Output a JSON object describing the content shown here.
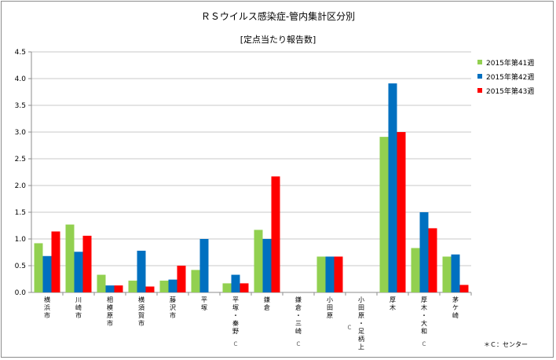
{
  "title": "ＲＳウイルス感染症-管内集計区分別",
  "subtitle": "[定点当たり報告数]",
  "note": "＊Ｃ：センター",
  "colors": {
    "s1": "#92d050",
    "s2": "#0070c0",
    "s3": "#ff0000",
    "grid": "#c8c8c8",
    "axis": "#8c8c8c"
  },
  "chart_data": {
    "type": "bar",
    "title": "ＲＳウイルス感染症-管内集計区分別",
    "subtitle": "[定点当たり報告数]",
    "categories": [
      "横浜市",
      "川崎市",
      "相模原市",
      "横須賀市",
      "藤沢市",
      "平塚",
      "平塚・秦野Ｃ",
      "鎌倉",
      "鎌倉・三崎Ｃ",
      "小田原",
      "小田原・足柄上Ｃ",
      "厚木",
      "厚木・大和Ｃ",
      "茅ケ崎"
    ],
    "category_labels": [
      {
        "lines": [
          "横",
          "浜",
          "市"
        ],
        "c": ""
      },
      {
        "lines": [
          "川",
          "崎",
          "市"
        ],
        "c": ""
      },
      {
        "lines": [
          "相",
          "模",
          "原",
          "市"
        ],
        "c": ""
      },
      {
        "lines": [
          "横",
          "須",
          "賀",
          "市"
        ],
        "c": ""
      },
      {
        "lines": [
          "藤",
          "沢",
          "市"
        ],
        "c": ""
      },
      {
        "lines": [
          "平",
          "塚"
        ],
        "c": ""
      },
      {
        "lines": [
          "平",
          "塚",
          "・",
          "秦",
          "野"
        ],
        "c": "Ｃ"
      },
      {
        "lines": [
          "鎌",
          "倉"
        ],
        "c": ""
      },
      {
        "lines": [
          "鎌",
          "倉",
          "・",
          "三",
          "崎"
        ],
        "c": "Ｃ"
      },
      {
        "lines": [
          "小",
          "田",
          "原"
        ],
        "c": ""
      },
      {
        "lines": [
          "小",
          "田",
          "原",
          "・",
          "足",
          "柄",
          "上"
        ],
        "c": "Ｃ"
      },
      {
        "lines": [
          "厚",
          "木"
        ],
        "c": ""
      },
      {
        "lines": [
          "厚",
          "木",
          "・",
          "大",
          "和"
        ],
        "c": "Ｃ"
      },
      {
        "lines": [
          "茅",
          "ケ",
          "崎"
        ],
        "c": ""
      }
    ],
    "series": [
      {
        "name": "2015年第41週",
        "values": [
          0.92,
          1.27,
          0.33,
          0.22,
          0.22,
          0.42,
          0.17,
          1.17,
          0,
          0.67,
          0,
          2.91,
          0.83,
          0.67
        ]
      },
      {
        "name": "2015年第42週",
        "values": [
          0.68,
          0.76,
          0.13,
          0.78,
          0.24,
          1.0,
          0.33,
          1.0,
          0,
          0.67,
          0,
          3.91,
          1.5,
          0.71
        ]
      },
      {
        "name": "2015年第43週",
        "values": [
          1.14,
          1.06,
          0.13,
          0.11,
          0.5,
          0,
          0.17,
          2.17,
          0,
          0.67,
          0,
          3.0,
          1.2,
          0.14
        ]
      }
    ],
    "ylim": [
      0,
      4.5
    ],
    "yticks": [
      "0.0",
      "0.5",
      "1.0",
      "1.5",
      "2.0",
      "2.5",
      "3.0",
      "3.5",
      "4.0",
      "4.5"
    ],
    "xlabel": "",
    "ylabel": "",
    "grid": true,
    "legend_position": "top-right"
  }
}
